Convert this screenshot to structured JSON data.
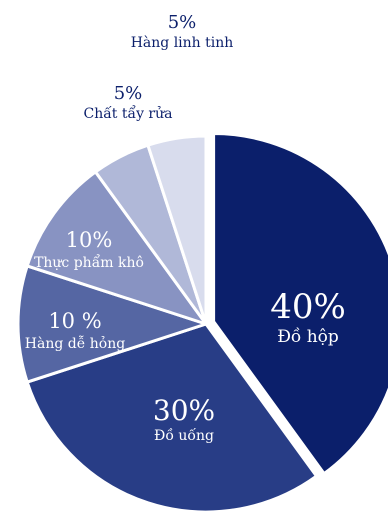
{
  "chart_data": {
    "type": "pie",
    "title": "",
    "slices": [
      {
        "label": "Đồ hộp",
        "value": 40,
        "value_label": "40%",
        "color": "#0b1f6b",
        "label_color": "#ffffff"
      },
      {
        "label": "Đồ uống",
        "value": 30,
        "value_label": "30%",
        "color": "#283d86",
        "label_color": "#ffffff"
      },
      {
        "label": "Hàng dễ hỏng",
        "value": 10,
        "value_label": "10 %",
        "color": "#5566a3",
        "label_color": "#ffffff"
      },
      {
        "label": "Thực phẩm khô",
        "value": 10,
        "value_label": "10%",
        "color": "#8893c2",
        "label_color": "#ffffff"
      },
      {
        "label": "Chất tẩy rửa",
        "value": 5,
        "value_label": "5%",
        "color": "#b0b8d8",
        "label_color": "#0b1f6b"
      },
      {
        "label": "Hàng linh tinh",
        "value": 5,
        "value_label": "5%",
        "color": "#d8dced",
        "label_color": "#0b1f6b"
      }
    ]
  }
}
